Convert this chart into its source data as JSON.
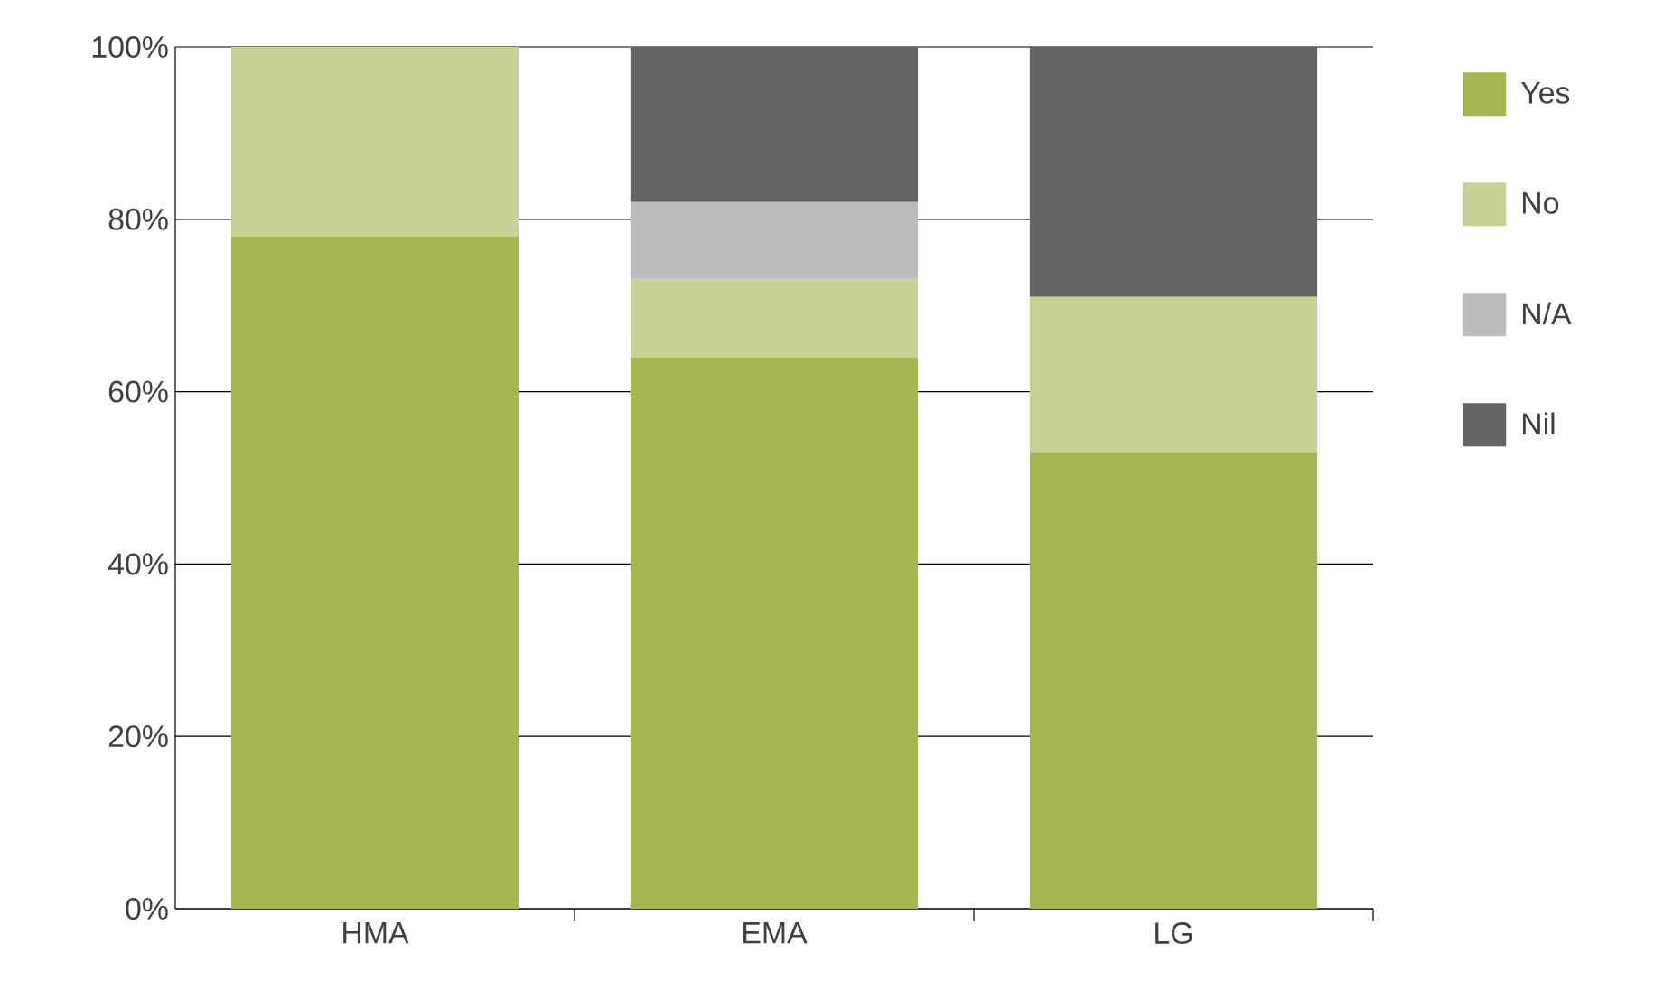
{
  "chart_data": {
    "type": "bar",
    "stacked": true,
    "categories": [
      "HMA",
      "EMA",
      "LG"
    ],
    "series": [
      {
        "name": "Yes",
        "color": "#a5b651",
        "values": [
          78,
          64,
          53
        ]
      },
      {
        "name": "No",
        "color": "#c8d095",
        "values": [
          22,
          9,
          18
        ]
      },
      {
        "name": "N/A",
        "color": "#bbbcbe",
        "values": [
          0,
          9,
          0
        ]
      },
      {
        "name": "Nil",
        "color": "#636466",
        "values": [
          0,
          18,
          29
        ]
      }
    ],
    "ylim": [
      0,
      100
    ],
    "yticks": [
      {
        "value": 0,
        "label": "0%"
      },
      {
        "value": 20,
        "label": "20%"
      },
      {
        "value": 40,
        "label": "40%"
      },
      {
        "value": 60,
        "label": "60%"
      },
      {
        "value": 80,
        "label": "80%"
      },
      {
        "value": 100,
        "label": "100%"
      }
    ],
    "grid": "y",
    "legend": "right"
  }
}
